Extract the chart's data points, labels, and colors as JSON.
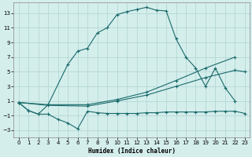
{
  "xlabel": "Humidex (Indice chaleur)",
  "background_color": "#d4eeec",
  "grid_color": "#aed4d0",
  "line_color": "#1a6b6b",
  "xlim": [
    -0.5,
    23.5
  ],
  "ylim": [
    -4,
    14.5
  ],
  "yticks": [
    -3,
    -1,
    1,
    3,
    5,
    7,
    9,
    11,
    13
  ],
  "xticks": [
    0,
    1,
    2,
    3,
    4,
    5,
    6,
    7,
    8,
    9,
    10,
    11,
    12,
    13,
    14,
    15,
    16,
    17,
    18,
    19,
    20,
    21,
    22,
    23
  ],
  "main_curve_x": [
    0,
    1,
    2,
    3,
    5,
    6,
    7,
    8,
    9,
    10,
    11,
    12,
    13,
    14,
    15,
    16,
    17,
    18,
    19,
    20,
    21,
    22
  ],
  "main_curve_y": [
    0.8,
    -0.3,
    -0.8,
    0.5,
    6.0,
    7.8,
    8.2,
    10.3,
    11.0,
    12.8,
    13.2,
    13.5,
    13.8,
    13.4,
    13.3,
    9.5,
    7.0,
    5.5,
    3.0,
    5.5,
    2.8,
    1.0
  ],
  "bot_curve_x": [
    0,
    1,
    2,
    3,
    4,
    5,
    6,
    7,
    8,
    9,
    10,
    11,
    12,
    13,
    14,
    15,
    16,
    17,
    18,
    19,
    20,
    21,
    22,
    23
  ],
  "bot_curve_y": [
    0.8,
    -0.3,
    -0.8,
    -0.8,
    -1.5,
    -2.0,
    -2.8,
    -0.4,
    -0.6,
    -0.7,
    -0.7,
    -0.7,
    -0.7,
    -0.6,
    -0.6,
    -0.5,
    -0.5,
    -0.5,
    -0.5,
    -0.5,
    -0.4,
    -0.4,
    -0.4,
    -0.7
  ],
  "diag1_x": [
    0,
    3,
    7,
    10,
    13,
    16,
    19,
    22
  ],
  "diag1_y": [
    0.8,
    0.5,
    0.5,
    1.2,
    2.2,
    3.8,
    5.5,
    7.0
  ],
  "diag2_x": [
    0,
    3,
    7,
    10,
    13,
    16,
    19,
    22,
    23
  ],
  "diag2_y": [
    0.8,
    0.4,
    0.3,
    1.0,
    1.8,
    3.0,
    4.2,
    5.2,
    5.0
  ]
}
